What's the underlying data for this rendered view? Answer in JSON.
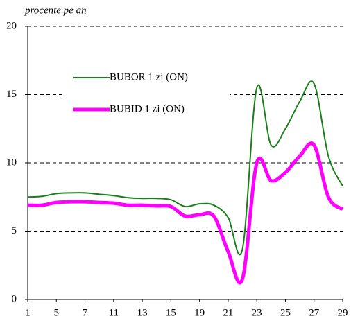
{
  "chart_data": {
    "type": "line",
    "y_label": "procente pe an",
    "categories": [
      "1",
      null,
      "5",
      null,
      "7",
      null,
      "11",
      null,
      "13",
      null,
      "15",
      null,
      "19",
      null,
      "21",
      null,
      "23",
      null,
      "25",
      null,
      "27",
      null,
      "29"
    ],
    "series": [
      {
        "name": "BUBOR 1 zi (ON)",
        "color": "#1a7f1a",
        "width": 2,
        "values": [
          7.5,
          7.55,
          7.75,
          7.8,
          7.8,
          7.7,
          7.6,
          7.45,
          7.4,
          7.4,
          7.3,
          6.8,
          7.0,
          6.9,
          6.0,
          3.7,
          15.5,
          11.3,
          12.5,
          14.5,
          15.8,
          10.5,
          8.3
        ]
      },
      {
        "name": "BUBID 1 zi (ON)",
        "color": "#ff00ff",
        "width": 5,
        "values": [
          6.9,
          6.9,
          7.1,
          7.15,
          7.15,
          7.1,
          7.05,
          6.9,
          6.9,
          6.85,
          6.8,
          6.1,
          6.2,
          6.1,
          3.5,
          1.5,
          10.0,
          8.7,
          9.3,
          10.5,
          11.3,
          7.5,
          6.6
        ]
      }
    ],
    "ylim": [
      0,
      20
    ],
    "yticks": [
      0,
      5,
      10,
      15,
      20
    ],
    "grid": true
  }
}
